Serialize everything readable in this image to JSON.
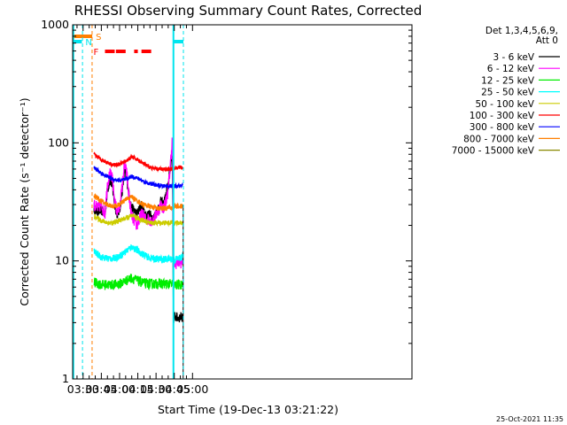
{
  "chart_data": {
    "type": "line",
    "title": "RHESSI Observing Summary Count Rates, Corrected",
    "xlabel": "Start Time (19-Dec-13 03:21:22)",
    "ylabel": "Corrected Count Rate (s⁻¹ detector⁻¹)",
    "yscale": "log",
    "ylim": [
      1,
      1000
    ],
    "xlim_minutes": [
      21.4,
      300.5
    ],
    "x_ticks": [
      {
        "label": "03:30",
        "t": 30
      },
      {
        "label": "03:45",
        "t": 45
      },
      {
        "label": "04:00",
        "t": 60
      },
      {
        "label": "04:15",
        "t": 75
      },
      {
        "label": "04:30",
        "t": 90
      },
      {
        "label": "04:45",
        "t": 105
      },
      {
        "label": "05:00",
        "t": 120
      }
    ],
    "y_ticks": [
      {
        "label": "1",
        "v": 1
      },
      {
        "label": "10",
        "v": 10
      },
      {
        "label": "100",
        "v": 100
      },
      {
        "label": "1000",
        "v": 1000
      }
    ],
    "legend_header": [
      "Det 1,3,4,5,6,9,",
      "Att 0"
    ],
    "legend": [
      {
        "label": "3 - 6 keV",
        "color": "#000000"
      },
      {
        "label": "6 - 12 keV",
        "color": "#ff00ff"
      },
      {
        "label": "12 - 25 keV",
        "color": "#00ee00"
      },
      {
        "label": "25 - 50 keV",
        "color": "#00ffff"
      },
      {
        "label": "50 - 100 keV",
        "color": "#cccc00"
      },
      {
        "label": "100 - 300 keV",
        "color": "#ff0000"
      },
      {
        "label": "300 - 800 keV",
        "color": "#0000ff"
      },
      {
        "label": "800 - 7000 keV",
        "color": "#ff7f00"
      },
      {
        "label": "7000 - 15000 keV",
        "color": "#888800"
      }
    ],
    "flags": [
      {
        "label": "N",
        "color": "#00e5ee",
        "segments": [
          [
            21.4,
            29
          ]
        ]
      },
      {
        "label": "S",
        "color": "#ff7f00",
        "segments": [
          [
            21.4,
            37.5
          ]
        ]
      },
      {
        "label": "F",
        "color": "#ff0000",
        "segments": [
          [
            48,
            56
          ],
          [
            57,
            65
          ],
          [
            72,
            75
          ],
          [
            78,
            86
          ]
        ]
      }
    ],
    "night_lines": [
      29.5,
      112.5
    ],
    "night_bars": [
      104.3
    ],
    "saa_line": 37.4,
    "series": [
      {
        "name": "3 - 6 keV",
        "color": "#000000",
        "t": [
          39,
          42,
          45,
          48,
          50,
          52,
          54,
          56,
          58,
          60,
          62,
          64,
          66,
          68,
          70,
          72,
          74,
          76,
          78,
          80,
          82,
          84,
          86,
          88,
          90,
          92,
          94,
          96,
          98,
          100,
          102,
          103.5,
          104.3,
          105,
          108,
          112
        ],
        "v": [
          28,
          26,
          27,
          25,
          40,
          48,
          44,
          30,
          25,
          27,
          38,
          58,
          50,
          35,
          28,
          27,
          25,
          27,
          30,
          26,
          24,
          25,
          24,
          23,
          26,
          28,
          32,
          30,
          35,
          45,
          65,
          80,
          3.2,
          3.4,
          3.3,
          3.4
        ]
      },
      {
        "name": "6 - 12 keV",
        "color": "#ff00ff",
        "t": [
          39,
          42,
          45,
          48,
          50,
          52,
          54,
          56,
          58,
          60,
          62,
          64,
          66,
          68,
          70,
          72,
          74,
          76,
          78,
          80,
          82,
          84,
          86,
          88,
          90,
          92,
          94,
          96,
          98,
          100,
          102,
          103.5,
          104.3,
          105,
          108,
          112
        ],
        "v": [
          30,
          28,
          30,
          25,
          45,
          55,
          50,
          32,
          26,
          28,
          42,
          65,
          55,
          33,
          24,
          22,
          20,
          22,
          25,
          24,
          22,
          23,
          22,
          22,
          25,
          27,
          30,
          28,
          32,
          40,
          70,
          110,
          9.5,
          9.5,
          9.8,
          9.8
        ]
      },
      {
        "name": "12 - 25 keV",
        "color": "#00ee00",
        "t": [
          39,
          45,
          50,
          55,
          60,
          65,
          70,
          75,
          80,
          85,
          90,
          95,
          100,
          104.3,
          105,
          108,
          112
        ],
        "v": [
          6.6,
          6.3,
          6.3,
          6.3,
          6.4,
          6.8,
          7.2,
          6.8,
          6.5,
          6.4,
          6.4,
          6.4,
          6.4,
          6.3,
          6.2,
          6.3,
          6.3
        ]
      },
      {
        "name": "25 - 50 keV",
        "color": "#00ffff",
        "t": [
          39,
          45,
          50,
          55,
          60,
          65,
          70,
          75,
          80,
          85,
          90,
          95,
          100,
          104.3,
          105,
          108,
          112
        ],
        "v": [
          12,
          10.8,
          10.5,
          10.5,
          11,
          12,
          13.2,
          12.2,
          11.2,
          10.6,
          10.4,
          10.3,
          10.4,
          10.4,
          10.2,
          10.5,
          10.8
        ]
      },
      {
        "name": "50 - 100 keV",
        "color": "#cccc00",
        "t": [
          39,
          45,
          50,
          55,
          60,
          65,
          70,
          75,
          80,
          85,
          90,
          95,
          100,
          104.3,
          105,
          108,
          112
        ],
        "v": [
          24,
          22,
          21,
          21,
          22,
          23,
          24,
          23,
          22,
          21,
          21,
          21,
          21,
          21,
          21,
          21,
          21
        ]
      },
      {
        "name": "800 - 7000 keV",
        "color": "#ff7f00",
        "t": [
          39,
          45,
          50,
          55,
          60,
          65,
          70,
          75,
          80,
          85,
          90,
          95,
          100,
          104.3,
          105,
          108,
          112
        ],
        "v": [
          36,
          32,
          30,
          29,
          30,
          33,
          35,
          32,
          30,
          29,
          28,
          28,
          28,
          28,
          29,
          29,
          29
        ]
      },
      {
        "name": "300 - 800 keV",
        "color": "#0000ff",
        "t": [
          39,
          45,
          50,
          55,
          60,
          65,
          70,
          75,
          80,
          85,
          90,
          95,
          100,
          104.3,
          105,
          108,
          112
        ],
        "v": [
          62,
          55,
          52,
          49,
          48,
          49,
          52,
          50,
          47,
          45,
          44,
          43,
          43,
          43,
          43,
          43,
          43
        ]
      },
      {
        "name": "100 - 300 keV",
        "color": "#ff0000",
        "t": [
          39,
          45,
          50,
          55,
          60,
          65,
          70,
          75,
          80,
          85,
          90,
          95,
          100,
          104.3,
          105,
          108,
          112
        ],
        "v": [
          80,
          72,
          68,
          65,
          66,
          70,
          76,
          72,
          66,
          62,
          60,
          60,
          60,
          60,
          61,
          62,
          62
        ]
      }
    ],
    "timestamp": "25-Oct-2021 11:35"
  }
}
